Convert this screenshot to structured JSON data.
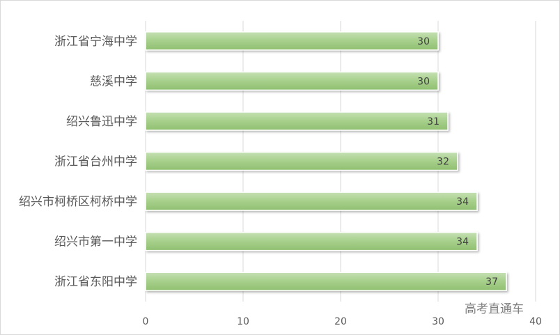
{
  "chart_data": {
    "type": "bar",
    "orientation": "horizontal",
    "categories": [
      "浙江省宁海中学",
      "慈溪中学",
      "绍兴鲁迅中学",
      "浙江省台州中学",
      "绍兴市柯桥区柯桥中学",
      "绍兴市第一中学",
      "浙江省东阳中学"
    ],
    "values": [
      30,
      30,
      31,
      32,
      34,
      34,
      37
    ],
    "xlim": [
      0,
      40
    ],
    "xticks": [
      "0",
      "10",
      "20",
      "30",
      "40"
    ],
    "grid": true,
    "legend": "none",
    "bar_color": "#a9d18e"
  },
  "watermark": "高考直通车"
}
